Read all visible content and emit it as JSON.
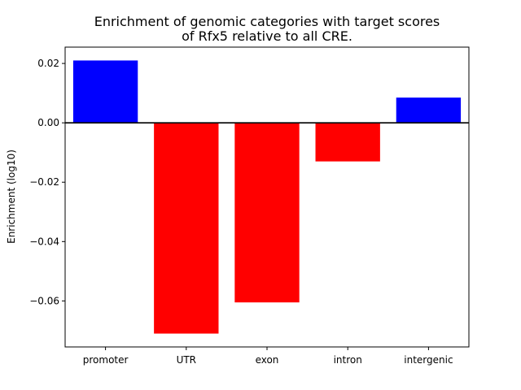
{
  "chart_data": {
    "type": "bar",
    "title_lines": [
      "Enrichment of genomic categories with target scores",
      "of Rfx5 relative to all CRE."
    ],
    "xlabel": "",
    "ylabel": "Enrichment (log10)",
    "categories": [
      "promoter",
      "UTR",
      "exon",
      "intron",
      "intergenic"
    ],
    "values": [
      0.021,
      -0.071,
      -0.0605,
      -0.013,
      0.0085
    ],
    "bar_colors": [
      "#0000ff",
      "#ff0000",
      "#ff0000",
      "#ff0000",
      "#0000ff"
    ],
    "ylim": [
      -0.0755,
      0.0255
    ],
    "yticks": [
      0.02,
      0.0,
      -0.02,
      -0.04,
      -0.06
    ],
    "ytick_labels": [
      "0.02",
      "0.00",
      "−0.02",
      "−0.04",
      "−0.06"
    ],
    "zero_line": true,
    "grid": false,
    "legend": "none"
  }
}
